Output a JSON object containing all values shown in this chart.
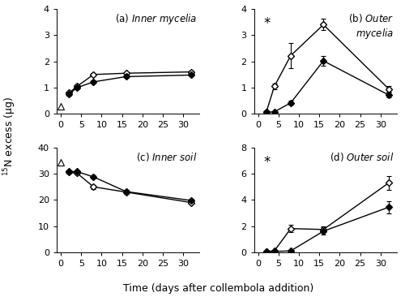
{
  "panels": [
    {
      "label_prefix": "(a) ",
      "label_italic": "Inner mycelia",
      "label_pos": "top_right",
      "label_multiline": false,
      "ylim": [
        0,
        4
      ],
      "yticks": [
        0,
        1,
        2,
        3,
        4
      ],
      "xlim": [
        -1,
        34
      ],
      "xticks": [
        0,
        5,
        10,
        15,
        20,
        25,
        30
      ],
      "show_star": false,
      "has_t0_triangle": true,
      "t0_triangle_y": 0.28,
      "ungrazed": {
        "x": [
          2,
          4,
          8,
          16,
          32
        ],
        "y": [
          0.8,
          1.05,
          1.5,
          1.55,
          1.6
        ],
        "yerr": [
          0.06,
          0.07,
          0.05,
          0.05,
          0.06
        ]
      },
      "grazed": {
        "x": [
          2,
          4,
          8,
          16,
          32
        ],
        "y": [
          0.75,
          1.0,
          1.22,
          1.42,
          1.48
        ],
        "yerr": [
          0.05,
          0.06,
          0.05,
          0.05,
          0.05
        ]
      }
    },
    {
      "label_prefix": "(b) ",
      "label_italic": "Outer\nmycelia",
      "label_pos": "top_right",
      "label_multiline": true,
      "ylim": [
        0,
        4
      ],
      "yticks": [
        0,
        1,
        2,
        3,
        4
      ],
      "xlim": [
        -1,
        34
      ],
      "xticks": [
        0,
        5,
        10,
        15,
        20,
        25,
        30
      ],
      "show_star": true,
      "has_t0_triangle": false,
      "ungrazed": {
        "x": [
          2,
          4,
          8,
          16,
          32
        ],
        "y": [
          0.06,
          1.05,
          2.22,
          3.4,
          0.95
        ],
        "yerr": [
          0.03,
          0.12,
          0.48,
          0.22,
          0.12
        ]
      },
      "grazed": {
        "x": [
          2,
          4,
          8,
          16,
          32
        ],
        "y": [
          0.06,
          0.08,
          0.42,
          2.02,
          0.72
        ],
        "yerr": [
          0.03,
          0.03,
          0.07,
          0.2,
          0.09
        ]
      }
    },
    {
      "label_prefix": "(c) ",
      "label_italic": "Inner soil",
      "label_pos": "top_right",
      "label_multiline": false,
      "ylim": [
        0,
        40
      ],
      "yticks": [
        0,
        10,
        20,
        30,
        40
      ],
      "xlim": [
        -1,
        34
      ],
      "xticks": [
        0,
        5,
        10,
        15,
        20,
        25,
        30
      ],
      "show_star": false,
      "has_t0_triangle": true,
      "t0_triangle_y": 34.5,
      "ungrazed": {
        "x": [
          2,
          4,
          8,
          16,
          32
        ],
        "y": [
          30.5,
          30.2,
          25.0,
          23.0,
          19.0
        ],
        "yerr": [
          0.5,
          0.5,
          0.7,
          0.6,
          0.5
        ]
      },
      "grazed": {
        "x": [
          2,
          4,
          8,
          16,
          32
        ],
        "y": [
          30.8,
          30.8,
          28.8,
          23.2,
          19.8
        ],
        "yerr": [
          0.5,
          0.5,
          0.6,
          0.6,
          0.5
        ]
      }
    },
    {
      "label_prefix": "(d) ",
      "label_italic": "Outer soil",
      "label_pos": "top_right",
      "label_multiline": false,
      "ylim": [
        0,
        8
      ],
      "yticks": [
        0,
        2,
        4,
        6,
        8
      ],
      "xlim": [
        -1,
        34
      ],
      "xticks": [
        0,
        5,
        10,
        15,
        20,
        25,
        30
      ],
      "show_star": true,
      "has_t0_triangle": false,
      "ungrazed": {
        "x": [
          2,
          4,
          8,
          16,
          32
        ],
        "y": [
          0.08,
          0.12,
          1.82,
          1.75,
          5.3
        ],
        "yerr": [
          0.03,
          0.04,
          0.28,
          0.22,
          0.52
        ]
      },
      "grazed": {
        "x": [
          2,
          4,
          8,
          16,
          32
        ],
        "y": [
          0.05,
          0.08,
          0.12,
          1.62,
          3.45
        ],
        "yerr": [
          0.02,
          0.02,
          0.03,
          0.28,
          0.45
        ]
      }
    }
  ],
  "ylabel": "$^{15}$N excess (μg)",
  "xlabel": "Time (days after collembola addition)",
  "linewidth": 1.0,
  "markersize": 4.5,
  "fontsize_label": 8.5,
  "fontsize_tick": 8,
  "fontsize_axis": 9,
  "fontsize_star": 12
}
